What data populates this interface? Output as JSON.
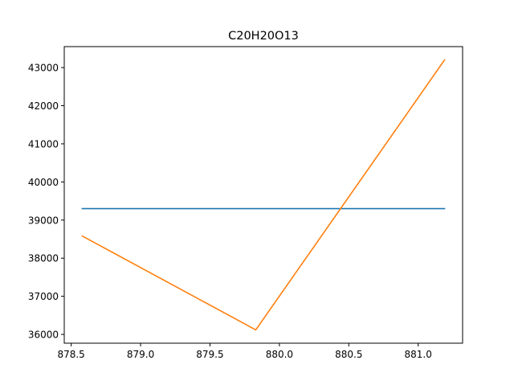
{
  "chart_data": {
    "type": "line",
    "title": "C20H20O13",
    "xlabel": "",
    "ylabel": "",
    "xlim": [
      878.45,
      881.32
    ],
    "ylim": [
      35770,
      43550
    ],
    "grid": false,
    "legend": "none",
    "x_ticks": [
      878.5,
      879.0,
      879.5,
      880.0,
      880.5,
      881.0
    ],
    "x_tick_labels": [
      "878.5",
      "879.0",
      "879.5",
      "880.0",
      "880.5",
      "881.0"
    ],
    "y_ticks": [
      36000,
      37000,
      38000,
      39000,
      40000,
      41000,
      42000,
      43000
    ],
    "y_tick_labels": [
      "36000",
      "37000",
      "38000",
      "39000",
      "40000",
      "41000",
      "42000",
      "43000"
    ],
    "series": [
      {
        "color": "#1f77b4",
        "x": [
          878.58,
          881.19
        ],
        "y": [
          39300,
          39300
        ]
      },
      {
        "color": "#ff7f0e",
        "x": [
          878.58,
          879.83,
          881.19
        ],
        "y": [
          38580,
          36120,
          43200
        ]
      }
    ]
  }
}
